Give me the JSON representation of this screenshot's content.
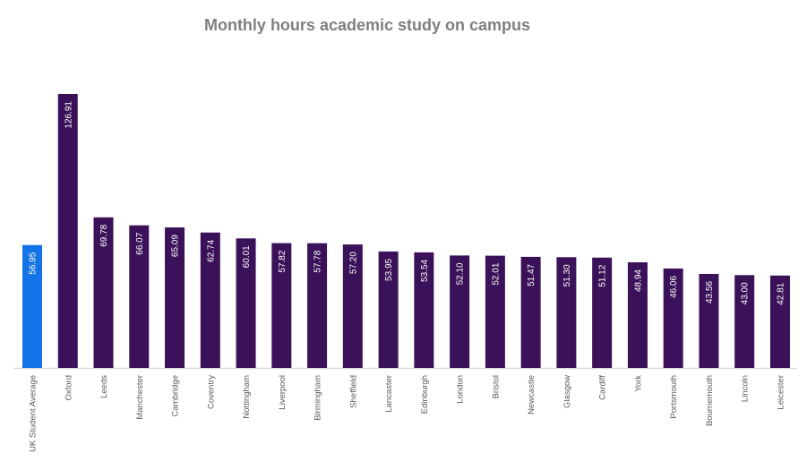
{
  "chart_data": {
    "type": "bar",
    "title": "Monthly hours academic study on campus",
    "xlabel": "",
    "ylabel": "",
    "ylim": [
      0,
      130
    ],
    "grid": false,
    "categories": [
      "UK Student Average",
      "Oxford",
      "Leeds",
      "Manchester",
      "Cambridge",
      "Coventry",
      "Nottingham",
      "Liverpool",
      "Birmingham",
      "Sheffield",
      "Lancaster",
      "Edinburgh",
      "London",
      "Bristol",
      "Newcastle",
      "Glasgow",
      "Cardiff",
      "York",
      "Portsmouth",
      "Bournemouth",
      "Lincoln",
      "Leicester"
    ],
    "values": [
      56.95,
      126.91,
      69.78,
      66.07,
      65.09,
      62.74,
      60.01,
      57.82,
      57.78,
      57.2,
      53.95,
      53.54,
      52.1,
      52.01,
      51.47,
      51.3,
      51.12,
      48.94,
      46.06,
      43.56,
      43.0,
      42.81
    ],
    "value_labels": [
      "56.95",
      "126.91",
      "69.78",
      "66.07",
      "65.09",
      "62.74",
      "60.01",
      "57.82",
      "57.78",
      "57.20",
      "53.95",
      "53.54",
      "52.10",
      "52.01",
      "51.47",
      "51.30",
      "51.12",
      "48.94",
      "46.06",
      "43.56",
      "43.00",
      "42.81"
    ],
    "colors": {
      "highlight": "#1473e6",
      "bar": "#3b1259",
      "axis": "#d9d9d9",
      "label": "#595959",
      "value_text": "#ffffff"
    },
    "highlight_index": 0
  }
}
